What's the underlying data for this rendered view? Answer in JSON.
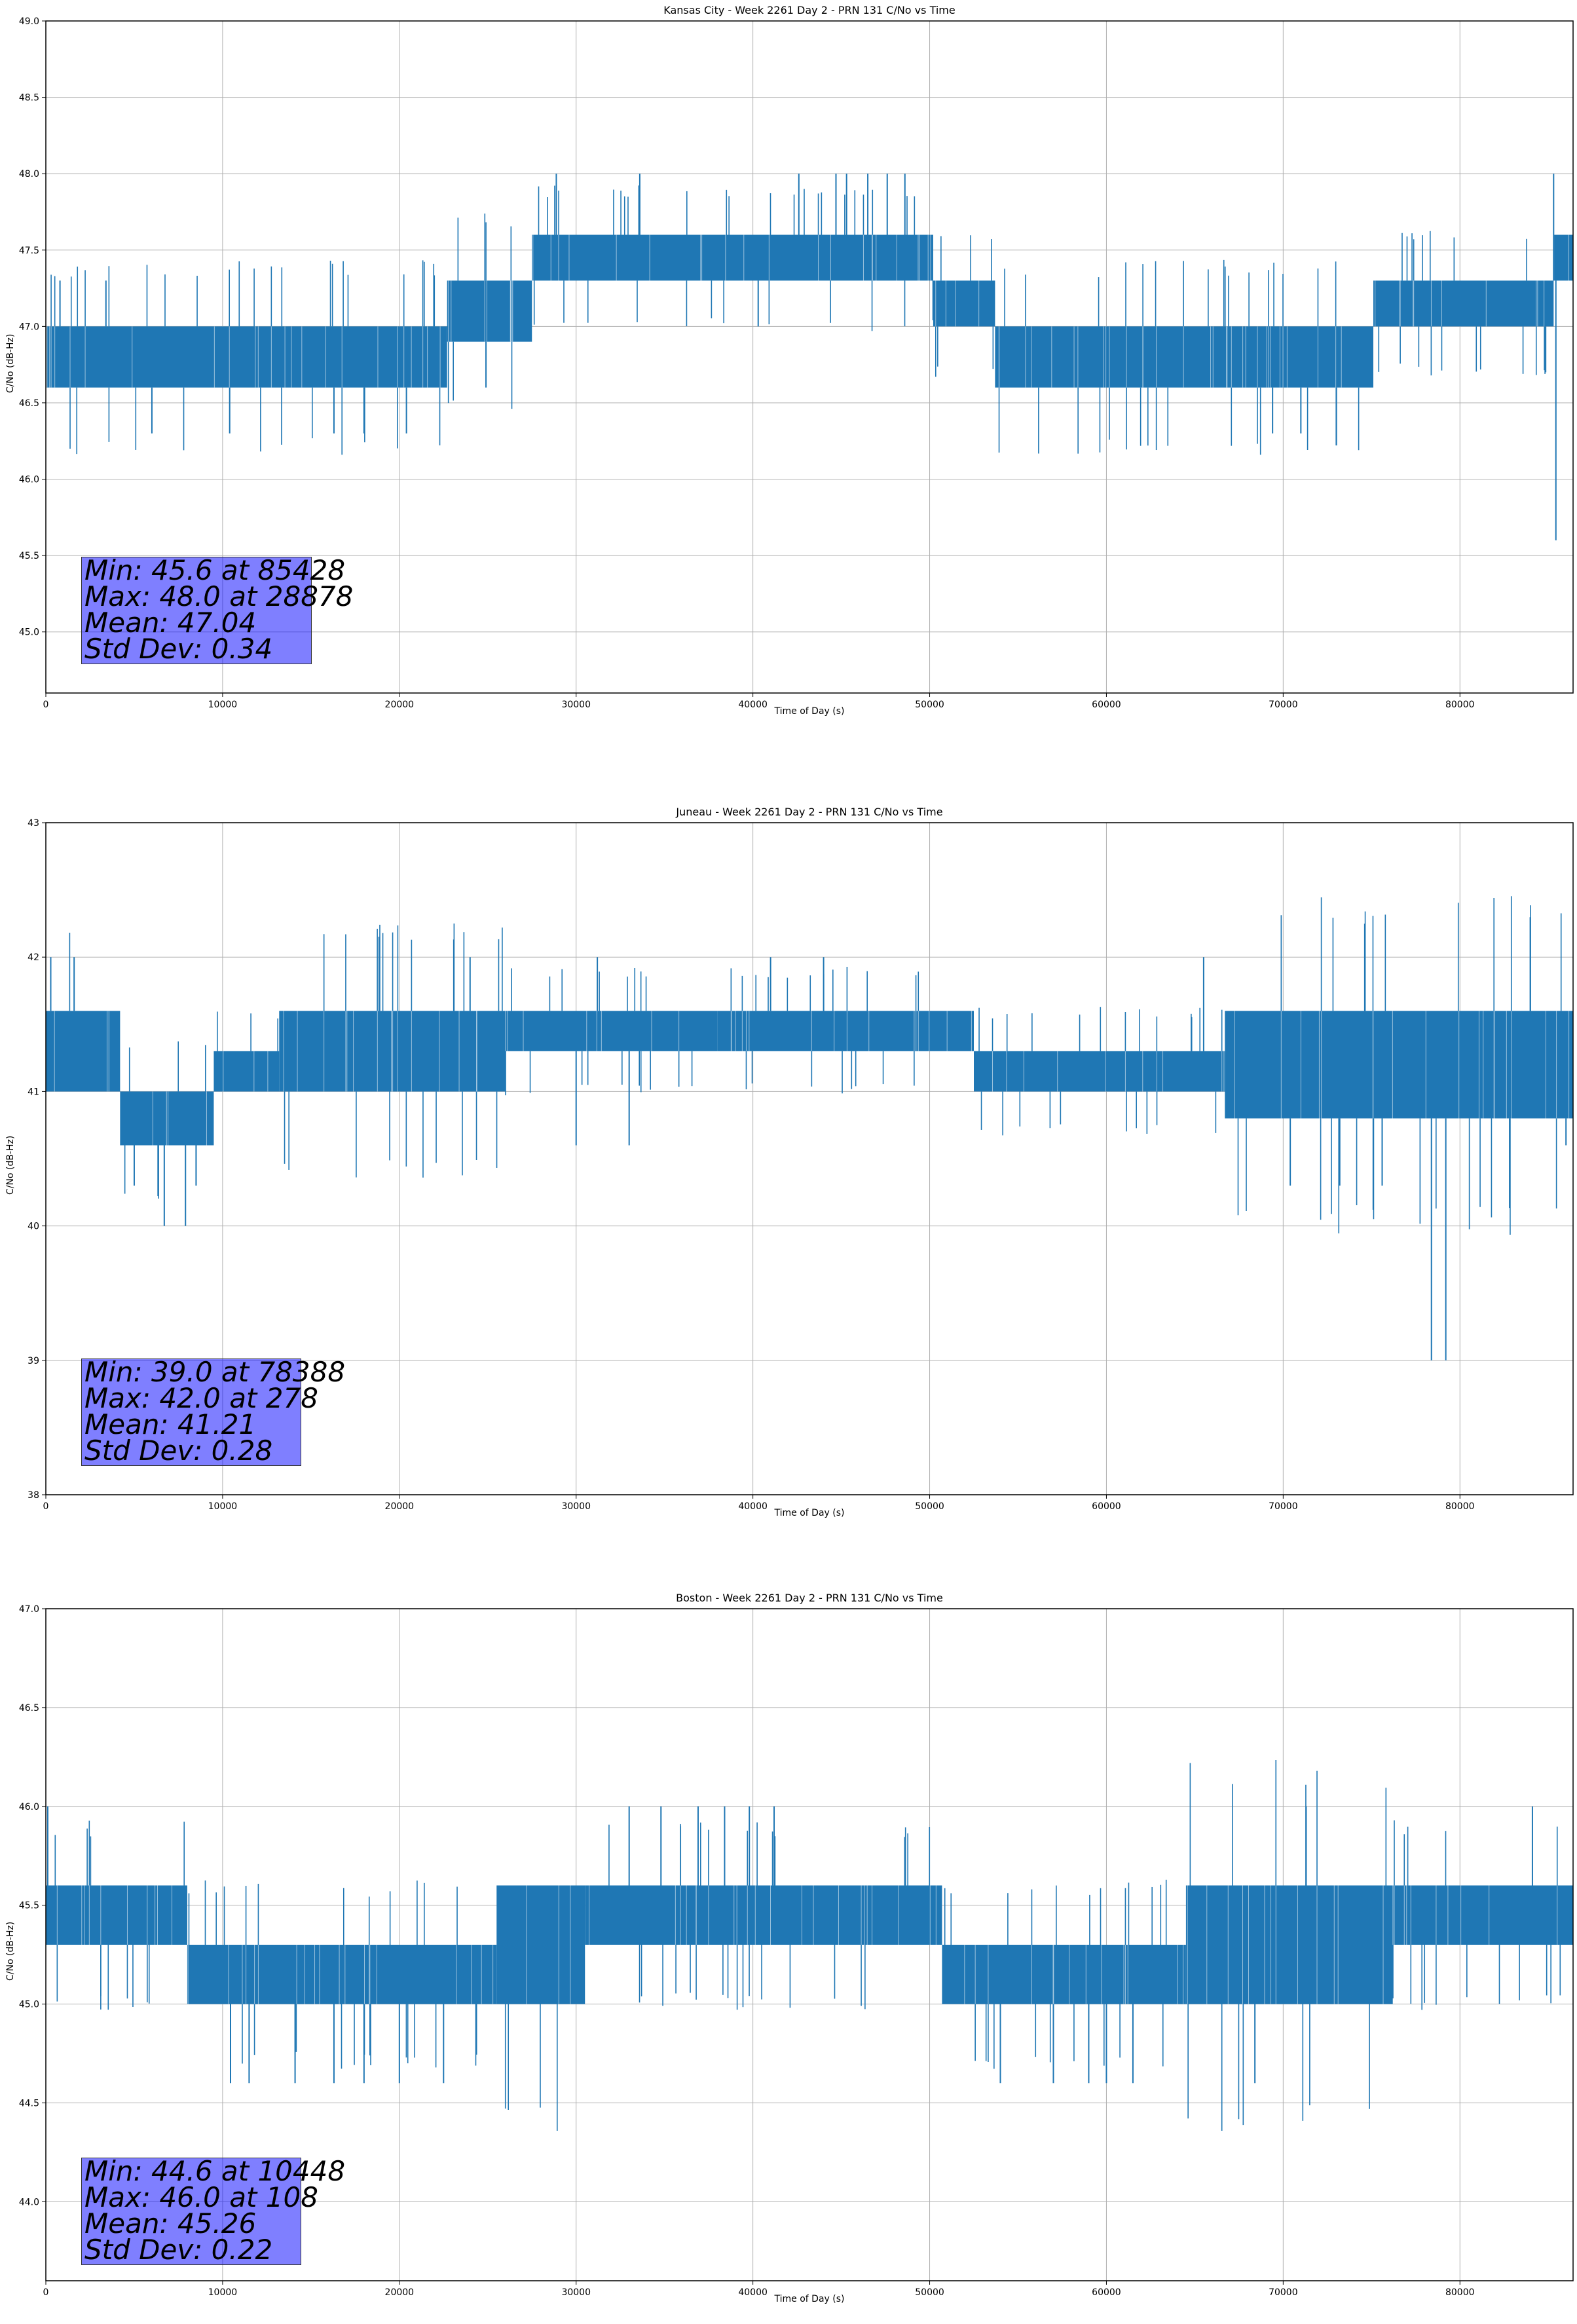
{
  "chart_data": [
    {
      "type": "line",
      "title": "Kansas City - Week 2261 Day 2 - PRN 131 C/No vs Time",
      "xlabel": "Time of Day (s)",
      "ylabel": "C/No (dB-Hz)",
      "xlim": [
        0,
        86400
      ],
      "ylim": [
        44.6,
        49.0
      ],
      "xticks": [
        0,
        10000,
        20000,
        30000,
        40000,
        50000,
        60000,
        70000,
        80000
      ],
      "yticks": [
        45.0,
        45.5,
        46.0,
        46.5,
        47.0,
        47.5,
        48.0,
        48.5,
        49.0
      ],
      "ytick_decimals": 1,
      "grid": true,
      "series_color": "#1f77b4",
      "stats": {
        "min": "Min: 45.6 at 85428",
        "max": "Max: 48.0 at 28878",
        "mean": "Mean: 47.04",
        "std": "Std Dev: 0.34"
      },
      "band_segments": [
        {
          "x0": 0,
          "x1": 22700,
          "low": 46.6,
          "high": 47.0
        },
        {
          "x0": 22700,
          "x1": 27500,
          "low": 46.9,
          "high": 47.3
        },
        {
          "x0": 27500,
          "x1": 50200,
          "low": 47.3,
          "high": 47.6
        },
        {
          "x0": 50200,
          "x1": 53700,
          "low": 47.0,
          "high": 47.3
        },
        {
          "x0": 53700,
          "x1": 75100,
          "low": 46.6,
          "high": 47.0
        },
        {
          "x0": 75100,
          "x1": 85300,
          "low": 47.0,
          "high": 47.3
        },
        {
          "x0": 85300,
          "x1": 86400,
          "low": 47.3,
          "high": 47.6
        }
      ],
      "spikes": [
        {
          "x": 28878,
          "y": 48.0
        },
        {
          "x": 33600,
          "y": 48.0
        },
        {
          "x": 42600,
          "y": 48.0
        },
        {
          "x": 44700,
          "y": 48.0
        },
        {
          "x": 45300,
          "y": 48.0
        },
        {
          "x": 46500,
          "y": 48.0
        },
        {
          "x": 47600,
          "y": 48.0
        },
        {
          "x": 48600,
          "y": 48.0
        },
        {
          "x": 85300,
          "y": 48.0
        },
        {
          "x": 85428,
          "y": 45.6
        },
        {
          "x": 16300,
          "y": 46.3
        },
        {
          "x": 18000,
          "y": 46.3
        },
        {
          "x": 6000,
          "y": 46.3
        },
        {
          "x": 10400,
          "y": 46.3
        },
        {
          "x": 20400,
          "y": 46.3
        },
        {
          "x": 69400,
          "y": 46.3
        },
        {
          "x": 71000,
          "y": 46.3
        },
        {
          "x": 24900,
          "y": 46.6
        },
        {
          "x": 800,
          "y": 47.3
        },
        {
          "x": 3400,
          "y": 47.3
        },
        {
          "x": 40300,
          "y": 47.0
        }
      ]
    },
    {
      "type": "line",
      "title": "Juneau - Week 2261 Day 2 - PRN 131 C/No vs Time",
      "xlabel": "Time of Day (s)",
      "ylabel": "C/No (dB-Hz)",
      "xlim": [
        0,
        86400
      ],
      "ylim": [
        38,
        43
      ],
      "xticks": [
        0,
        10000,
        20000,
        30000,
        40000,
        50000,
        60000,
        70000,
        80000
      ],
      "yticks": [
        38,
        39,
        40,
        41,
        42,
        43
      ],
      "ytick_decimals": 0,
      "grid": true,
      "series_color": "#1f77b4",
      "stats": {
        "min": "Min: 39.0 at 78388",
        "max": "Max: 42.0 at 278",
        "mean": "Mean: 41.21",
        "std": "Std Dev: 0.28"
      },
      "band_segments": [
        {
          "x0": 0,
          "x1": 4200,
          "low": 41.0,
          "high": 41.6
        },
        {
          "x0": 4200,
          "x1": 9500,
          "low": 40.6,
          "high": 41.0
        },
        {
          "x0": 9500,
          "x1": 13200,
          "low": 41.0,
          "high": 41.3
        },
        {
          "x0": 13200,
          "x1": 26000,
          "low": 41.0,
          "high": 41.6
        },
        {
          "x0": 26000,
          "x1": 38000,
          "low": 41.3,
          "high": 41.6
        },
        {
          "x0": 38000,
          "x1": 52500,
          "low": 41.3,
          "high": 41.6
        },
        {
          "x0": 52500,
          "x1": 66700,
          "low": 41.0,
          "high": 41.3
        },
        {
          "x0": 66700,
          "x1": 86400,
          "low": 40.8,
          "high": 41.6
        }
      ],
      "spikes": [
        {
          "x": 278,
          "y": 42.0
        },
        {
          "x": 1600,
          "y": 42.0
        },
        {
          "x": 24000,
          "y": 42.0
        },
        {
          "x": 31200,
          "y": 42.0
        },
        {
          "x": 41000,
          "y": 42.0
        },
        {
          "x": 44000,
          "y": 42.0
        },
        {
          "x": 65500,
          "y": 42.0
        },
        {
          "x": 78388,
          "y": 39.0
        },
        {
          "x": 79200,
          "y": 39.0
        },
        {
          "x": 6700,
          "y": 40.0
        },
        {
          "x": 7900,
          "y": 40.0
        },
        {
          "x": 5000,
          "y": 40.3
        },
        {
          "x": 8500,
          "y": 40.3
        },
        {
          "x": 70400,
          "y": 40.3
        },
        {
          "x": 73200,
          "y": 40.3
        },
        {
          "x": 75600,
          "y": 40.3
        },
        {
          "x": 86000,
          "y": 40.6
        },
        {
          "x": 30000,
          "y": 40.6
        },
        {
          "x": 33000,
          "y": 40.6
        }
      ]
    },
    {
      "type": "line",
      "title": "Boston - Week 2261 Day 2 - PRN 131 C/No vs Time",
      "xlabel": "Time of Day (s)",
      "ylabel": "C/No (dB-Hz)",
      "xlim": [
        0,
        86400
      ],
      "ylim": [
        43.6,
        47.0
      ],
      "xticks": [
        0,
        10000,
        20000,
        30000,
        40000,
        50000,
        60000,
        70000,
        80000
      ],
      "yticks": [
        44.0,
        44.5,
        45.0,
        45.5,
        46.0,
        46.5,
        47.0
      ],
      "ytick_decimals": 1,
      "grid": true,
      "series_color": "#1f77b4",
      "stats": {
        "min": "Min: 44.6 at 10448",
        "max": "Max: 46.0 at 108",
        "mean": "Mean: 45.26",
        "std": "Std Dev: 0.22"
      },
      "band_segments": [
        {
          "x0": 0,
          "x1": 8000,
          "low": 45.3,
          "high": 45.6
        },
        {
          "x0": 8000,
          "x1": 25500,
          "low": 45.0,
          "high": 45.3
        },
        {
          "x0": 25500,
          "x1": 30500,
          "low": 45.0,
          "high": 45.6
        },
        {
          "x0": 30500,
          "x1": 50700,
          "low": 45.3,
          "high": 45.6
        },
        {
          "x0": 50700,
          "x1": 64500,
          "low": 45.0,
          "high": 45.3
        },
        {
          "x0": 64500,
          "x1": 76200,
          "low": 45.0,
          "high": 45.6
        },
        {
          "x0": 76200,
          "x1": 86400,
          "low": 45.3,
          "high": 45.6
        }
      ],
      "spikes": [
        {
          "x": 108,
          "y": 46.0
        },
        {
          "x": 33000,
          "y": 46.0
        },
        {
          "x": 34800,
          "y": 46.0
        },
        {
          "x": 36900,
          "y": 46.0
        },
        {
          "x": 38400,
          "y": 46.0
        },
        {
          "x": 39800,
          "y": 46.0
        },
        {
          "x": 41200,
          "y": 46.0
        },
        {
          "x": 71300,
          "y": 46.0
        },
        {
          "x": 84100,
          "y": 46.0
        },
        {
          "x": 10448,
          "y": 44.6
        },
        {
          "x": 11500,
          "y": 44.6
        },
        {
          "x": 14100,
          "y": 44.6
        },
        {
          "x": 16300,
          "y": 44.6
        },
        {
          "x": 18000,
          "y": 44.6
        },
        {
          "x": 20000,
          "y": 44.6
        },
        {
          "x": 22500,
          "y": 44.6
        },
        {
          "x": 54000,
          "y": 44.6
        },
        {
          "x": 57000,
          "y": 44.6
        },
        {
          "x": 59000,
          "y": 44.6
        },
        {
          "x": 61500,
          "y": 44.6
        },
        {
          "x": 68400,
          "y": 44.6
        },
        {
          "x": 60000,
          "y": 44.6
        }
      ]
    }
  ]
}
